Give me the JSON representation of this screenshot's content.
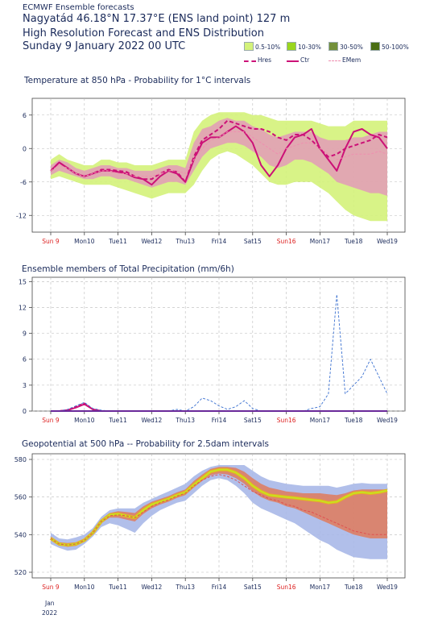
{
  "header": {
    "small_title": "ECMWF Ensemble forecasts",
    "location": "Nagyatád 46.18°N 17.37°E (ENS land point) 127 m",
    "line2": "High Resolution Forecast and ENS Distribution",
    "line3": "Sunday  9 January 2022 00 UTC"
  },
  "legend": {
    "boxes": [
      {
        "label": "0.5-10%",
        "color": "#d4f27a"
      },
      {
        "label": "10-30%",
        "color": "#9ad61e"
      },
      {
        "label": "30-50%",
        "color": "#73903a"
      },
      {
        "label": "50-100%",
        "color": "#4a6e14"
      }
    ],
    "lines": [
      {
        "label": "Hres",
        "color": "#cc1177",
        "style": "dashed"
      },
      {
        "label": "Ctr",
        "color": "#cc1177",
        "style": "solid"
      },
      {
        "label": "EMem",
        "color": "#ef8fb0",
        "style": "dashed"
      }
    ]
  },
  "x_tick_labels": [
    "Sun 9",
    "Mon10",
    "Tue11",
    "Wed12",
    "Thu13",
    "Fri14",
    "Sat15",
    "Sun16",
    "Mon17",
    "Tue18",
    "Wed19"
  ],
  "weekend_tick_color": "#dd2222",
  "weekday_tick_color": "#1a2a5a",
  "x_sub_labels": [
    "Jan",
    "2022"
  ],
  "chart_data": [
    {
      "type": "line",
      "title": "Temperature at 850 hPa - Probability for 1°C intervals",
      "unit": "°C",
      "x": [
        0,
        0.25,
        0.5,
        0.75,
        1,
        1.25,
        1.5,
        1.75,
        2,
        2.25,
        2.5,
        2.75,
        3,
        3.25,
        3.5,
        3.75,
        4,
        4.25,
        4.5,
        4.75,
        5,
        5.25,
        5.5,
        5.75,
        6,
        6.25,
        6.5,
        6.75,
        7,
        7.25,
        7.5,
        7.75,
        8,
        8.25,
        8.5,
        8.75,
        9,
        9.25,
        9.5,
        9.75,
        10
      ],
      "x_unit": "days from Sun 9 Jan 2022 00 UTC",
      "ylim": [
        -15,
        9
      ],
      "yticks": [
        -12,
        -6,
        0,
        6
      ],
      "series": [
        {
          "name": "Hres",
          "values": [
            -4,
            -2.5,
            -3.5,
            -4.5,
            -5,
            -4.5,
            -3.8,
            -3.8,
            -4,
            -4.2,
            -5,
            -5.5,
            -5.5,
            -4.5,
            -3.8,
            -4.2,
            -6,
            -1.5,
            1.5,
            2.5,
            3.5,
            5,
            4.5,
            4,
            3.5,
            3.5,
            3,
            2,
            1.5,
            2.5,
            2.5,
            1.5,
            0,
            -1.5,
            -1,
            0,
            0.5,
            1,
            1.5,
            2.5,
            2
          ]
        },
        {
          "name": "Ctr",
          "values": [
            -4,
            -2.5,
            -3.5,
            -4.5,
            -5,
            -4.5,
            -4,
            -4,
            -4.2,
            -4.5,
            -5.2,
            -5.5,
            -6.5,
            -5,
            -4,
            -4.5,
            -6,
            -2,
            1,
            2,
            2,
            3,
            4,
            3,
            1,
            -3,
            -5,
            -3,
            0,
            2,
            2.5,
            3.5,
            0,
            -2,
            -4,
            0,
            3,
            3.5,
            2.5,
            2,
            0
          ]
        },
        {
          "name": "EMem",
          "values": [
            -4,
            -3,
            -3.5,
            -4.5,
            -5,
            -4.5,
            -4,
            -4,
            -4.5,
            -4.5,
            -5,
            -5,
            -5,
            -4.5,
            -4,
            -4,
            -4.5,
            -2,
            0,
            1.5,
            2,
            3,
            3,
            3,
            2,
            1,
            0,
            -1,
            0,
            0.5,
            1,
            1,
            0,
            -1,
            -2,
            -1.5,
            -1,
            -1,
            -1,
            -0.5,
            -1
          ]
        }
      ],
      "prob_bands": [
        {
          "name": "0.5-10%",
          "low": [
            -5.5,
            -5,
            -5.5,
            -6,
            -6.5,
            -6.5,
            -6.5,
            -6.5,
            -7,
            -7.5,
            -8,
            -8.5,
            -9,
            -8.5,
            -8,
            -8,
            -8,
            -6.5,
            -4,
            -2,
            -1,
            -0.5,
            -1,
            -2,
            -3,
            -4.5,
            -6,
            -6.5,
            -6.5,
            -6,
            -6,
            -6,
            -7,
            -8,
            -9.5,
            -11,
            -12,
            -12.5,
            -13,
            -13,
            -13
          ],
          "high": [
            -2,
            -1,
            -2,
            -2.5,
            -3,
            -3,
            -2,
            -2,
            -2.5,
            -2.5,
            -3,
            -3,
            -3,
            -2.5,
            -2,
            -2,
            -2,
            3,
            5,
            6,
            6.5,
            6.5,
            6.5,
            6.5,
            6,
            6,
            5.5,
            5,
            5,
            5,
            5,
            5,
            4.5,
            4,
            4,
            4,
            5,
            5,
            5,
            5,
            5
          ]
        },
        {
          "name": "10-30%",
          "low": [
            -4.8,
            -4,
            -4.5,
            -5,
            -5.5,
            -5.5,
            -5,
            -5,
            -5.5,
            -5.5,
            -6,
            -6.5,
            -7,
            -6.5,
            -6,
            -6,
            -6.5,
            -4,
            -1.5,
            0,
            0.5,
            1,
            1,
            0.5,
            -0.5,
            -1.5,
            -3,
            -3.5,
            -3,
            -2,
            -2,
            -2.5,
            -3.5,
            -4.5,
            -6,
            -6.5,
            -7,
            -7.5,
            -8,
            -8,
            -8.5
          ],
          "high": [
            -3,
            -2,
            -2.5,
            -3.5,
            -4,
            -3.5,
            -3,
            -3,
            -3.5,
            -3.5,
            -4,
            -4,
            -4,
            -3.5,
            -3,
            -3,
            -3.5,
            1,
            3.5,
            4,
            5,
            5.5,
            5,
            5,
            4,
            3.5,
            2.5,
            2,
            2.5,
            3,
            3,
            3,
            2,
            1.5,
            1.5,
            1.5,
            2,
            2,
            2.5,
            3,
            3
          ]
        }
      ]
    },
    {
      "type": "line",
      "title": "Ensemble members of Total Precipitation (mm/6h)",
      "unit": "mm/6h",
      "x": [
        0,
        0.25,
        0.5,
        0.75,
        1,
        1.25,
        1.5,
        1.75,
        2,
        2.25,
        2.5,
        2.75,
        3,
        3.25,
        3.5,
        3.75,
        4,
        4.25,
        4.5,
        4.75,
        5,
        5.25,
        5.5,
        5.75,
        6,
        6.25,
        6.5,
        6.75,
        7,
        7.25,
        7.5,
        7.75,
        8,
        8.25,
        8.5,
        8.75,
        9,
        9.25,
        9.5,
        9.75,
        10
      ],
      "ylim": [
        0,
        15.5
      ],
      "yticks": [
        0,
        3,
        6,
        9,
        12,
        15
      ],
      "series": [
        {
          "name": "Hres",
          "values": [
            0,
            0,
            0.1,
            0.5,
            0.9,
            0.2,
            0,
            0,
            0,
            0,
            0,
            0,
            0,
            0,
            0,
            0,
            0,
            0,
            0,
            0,
            0,
            0,
            0,
            0,
            0,
            0,
            0,
            0,
            0,
            0,
            0,
            0,
            0,
            0,
            0,
            0,
            0,
            0,
            0,
            0,
            0
          ]
        },
        {
          "name": "Ctr",
          "values": [
            0,
            0,
            0.1,
            0.4,
            0.8,
            0.2,
            0,
            0,
            0,
            0,
            0,
            0,
            0,
            0,
            0,
            0,
            0,
            0,
            0,
            0,
            0,
            0,
            0,
            0,
            0,
            0,
            0,
            0,
            0,
            0,
            0,
            0,
            0,
            0,
            0,
            0,
            0,
            0,
            0,
            0,
            0
          ]
        },
        {
          "name": "EMem",
          "values": [
            0,
            0,
            0.2,
            0.6,
            1.0,
            0.3,
            0.1,
            0,
            0,
            0,
            0,
            0,
            0,
            0,
            0,
            0.2,
            0,
            0.5,
            1.5,
            1.2,
            0.6,
            0.2,
            0.5,
            1.2,
            0.3,
            0,
            0,
            0,
            0,
            0,
            0,
            0.3,
            0.5,
            2,
            13.5,
            2,
            3,
            4,
            6,
            4,
            2
          ]
        }
      ]
    },
    {
      "type": "line",
      "title": "Geopotential at 500 hPa -- Probability for 2.5dam intervals",
      "unit": "dam",
      "x": [
        0,
        0.25,
        0.5,
        0.75,
        1,
        1.25,
        1.5,
        1.75,
        2,
        2.25,
        2.5,
        2.75,
        3,
        3.25,
        3.5,
        3.75,
        4,
        4.25,
        4.5,
        4.75,
        5,
        5.25,
        5.5,
        5.75,
        6,
        6.25,
        6.5,
        6.75,
        7,
        7.25,
        7.5,
        7.75,
        8,
        8.25,
        8.5,
        8.75,
        9,
        9.25,
        9.5,
        9.75,
        10
      ],
      "ylim": [
        517,
        583
      ],
      "yticks": [
        520,
        540,
        560,
        580
      ],
      "series": [
        {
          "name": "Hres",
          "values": [
            538,
            535,
            534.5,
            535,
            537,
            541,
            547,
            550.5,
            551,
            550,
            549,
            553,
            556,
            557.5,
            559,
            561,
            562.5,
            566.5,
            570,
            573.5,
            574.5,
            574.5,
            573,
            570,
            566,
            563,
            561,
            560.5,
            560,
            559.5,
            559,
            558.5,
            558,
            557,
            557.5,
            560,
            562,
            562.5,
            562,
            562.5,
            563.5
          ]
        },
        {
          "name": "Ctr",
          "values": [
            538,
            535,
            534.5,
            535,
            537,
            541,
            547,
            550.5,
            551,
            550,
            549,
            553,
            556,
            557.5,
            559,
            561,
            562.5,
            566.5,
            570,
            573.5,
            574.5,
            574.5,
            573,
            570,
            566,
            563,
            561,
            560.5,
            560,
            559.5,
            559,
            558.5,
            558,
            557,
            557.5,
            560,
            562,
            562.5,
            562,
            562.5,
            563.5
          ]
        },
        {
          "name": "EMem",
          "values": [
            538,
            535,
            534.5,
            535,
            537,
            541,
            547,
            550,
            550.5,
            550,
            549,
            552,
            555,
            557,
            558.5,
            560.5,
            562,
            566,
            569,
            571,
            572,
            571,
            569,
            566,
            563,
            561,
            559,
            558,
            556,
            555,
            553,
            552,
            550,
            548,
            546,
            544,
            542,
            541,
            540,
            540,
            540
          ]
        }
      ],
      "prob_bands": [
        {
          "name": "0.5-10%",
          "low": [
            535,
            533,
            531.5,
            532,
            535,
            539,
            544,
            546,
            545,
            543,
            541,
            546,
            550,
            553,
            555,
            557,
            558,
            562,
            566,
            569,
            570,
            569,
            566,
            562,
            557,
            554,
            552,
            550,
            548,
            546,
            543,
            540,
            537,
            535,
            532,
            530,
            528,
            527.5,
            527,
            527,
            527
          ],
          "high": [
            541,
            538,
            537.5,
            538.5,
            540,
            543.5,
            549.5,
            553,
            554,
            554,
            554,
            557,
            559,
            561,
            563,
            565,
            567,
            571,
            574,
            576,
            577,
            577,
            577,
            577,
            574,
            571,
            569,
            568,
            567,
            566.5,
            566,
            566,
            566,
            566,
            565,
            566,
            567,
            567.5,
            567,
            567,
            567
          ]
        },
        {
          "name": "10-30%",
          "low": [
            537,
            534.5,
            533.5,
            534,
            536.5,
            540,
            546,
            549,
            549,
            548,
            547,
            551,
            554,
            556,
            557.5,
            559.5,
            561,
            565,
            568.5,
            571.5,
            572.5,
            572,
            570,
            567,
            563,
            560,
            558,
            557,
            555,
            554,
            552,
            550,
            548,
            546,
            544,
            542,
            540,
            539,
            538,
            538,
            538
          ],
          "high": [
            539,
            536,
            535.5,
            536,
            538,
            542,
            548,
            551.5,
            552.5,
            552,
            551.5,
            555,
            557.5,
            559,
            560.5,
            562.5,
            564,
            568.5,
            572,
            575,
            576,
            576,
            575.5,
            573.5,
            570,
            567,
            565,
            564,
            563,
            562.5,
            562,
            562,
            562,
            561.5,
            561,
            562,
            563.5,
            564,
            564,
            564,
            564
          ]
        }
      ]
    }
  ]
}
